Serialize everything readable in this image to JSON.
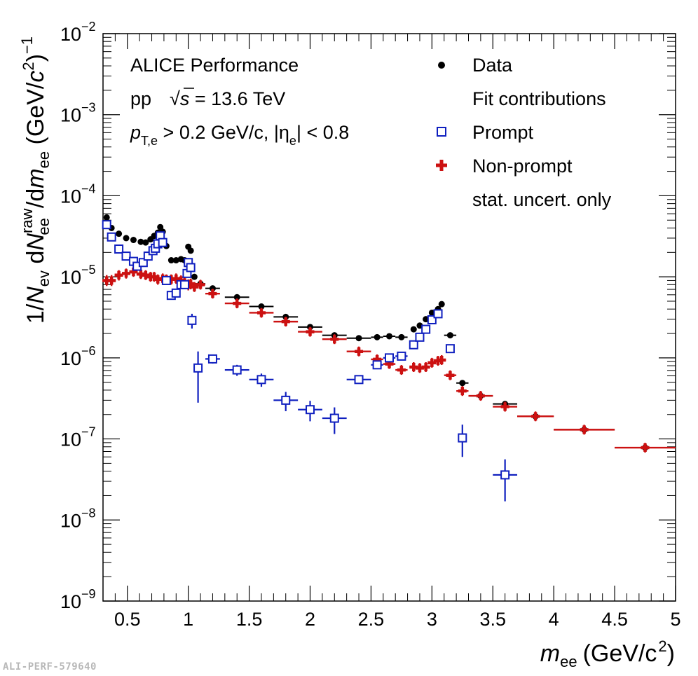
{
  "chart_data": {
    "type": "scatter",
    "title": "",
    "xlabel": {
      "main": "m",
      "sub": "ee",
      "unit": "(GeV/c",
      "exp": "2",
      "close": ")"
    },
    "ylabel": {
      "p1": "1/",
      "N": "N",
      "ev": "ev",
      "p2": " d",
      "N2": "N",
      "ee_sub": "ee",
      "raw_sup": "raw",
      "p3": "/d",
      "m": "m",
      "ee2": "ee",
      "p4": " (GeV/",
      "c": "c",
      "two": "2",
      "p5": ")",
      "minus1": "−1"
    },
    "xlim": [
      0.3,
      5.0
    ],
    "ylim_log10": [
      -9,
      -2
    ],
    "log_y": true,
    "x_ticks": [
      "0.5",
      "1",
      "1.5",
      "2",
      "2.5",
      "3",
      "3.5",
      "4",
      "4.5",
      "5"
    ],
    "x_tick_values": [
      0.5,
      1,
      1.5,
      2,
      2.5,
      3,
      3.5,
      4,
      4.5,
      5
    ],
    "y_ticks": [
      {
        "exp": -9,
        "base": "10",
        "sup": "−9"
      },
      {
        "exp": -8,
        "base": "10",
        "sup": "−8"
      },
      {
        "exp": -7,
        "base": "10",
        "sup": "−7"
      },
      {
        "exp": -6,
        "base": "10",
        "sup": "−6"
      },
      {
        "exp": -5,
        "base": "10",
        "sup": "−5"
      },
      {
        "exp": -4,
        "base": "10",
        "sup": "−4"
      },
      {
        "exp": -3,
        "base": "10",
        "sup": "−3"
      },
      {
        "exp": -2,
        "base": "10",
        "sup": "−2"
      }
    ],
    "annotations": {
      "experiment": "ALICE Performance",
      "system": "pp",
      "sqrt": "√",
      "s": "s",
      "energy": " = 13.6 TeV",
      "pt_p": "p",
      "pt_sub": "T,e",
      "pt_cut": " > 0.2 GeV/c, |η",
      "eta_sub": "e",
      "eta_cut": "| < 0.8"
    },
    "legend": {
      "position": "top-right",
      "entries": [
        {
          "label": "Data",
          "marker": "dot",
          "color": "#000000"
        },
        {
          "label": "Fit contributions",
          "marker": "none",
          "color": "#000000"
        },
        {
          "label": "Prompt",
          "marker": "open-square",
          "color": "#0f1fbf"
        },
        {
          "label": "Non-prompt",
          "marker": "cross",
          "color": "#cc1111"
        },
        {
          "label": "stat. uncert. only",
          "marker": "none",
          "color": "#000000"
        }
      ]
    },
    "series": [
      {
        "name": "Data",
        "marker": "dot",
        "color": "#000000",
        "points": [
          {
            "x": 0.33,
            "xw": 0.01,
            "y": 5.4e-05
          },
          {
            "x": 0.37,
            "xw": 0.01,
            "y": 4e-05
          },
          {
            "x": 0.43,
            "xw": 0.02,
            "y": 3.4e-05
          },
          {
            "x": 0.49,
            "xw": 0.02,
            "y": 3e-05
          },
          {
            "x": 0.55,
            "xw": 0.02,
            "y": 2.85e-05
          },
          {
            "x": 0.61,
            "xw": 0.02,
            "y": 2.7e-05
          },
          {
            "x": 0.65,
            "xw": 0.01,
            "y": 2.65e-05
          },
          {
            "x": 0.69,
            "xw": 0.01,
            "y": 2.9e-05
          },
          {
            "x": 0.72,
            "xw": 0.01,
            "y": 3.2e-05
          },
          {
            "x": 0.75,
            "xw": 0.01,
            "y": 3.5e-05
          },
          {
            "x": 0.77,
            "xw": 0.01,
            "y": 4.1e-05
          },
          {
            "x": 0.79,
            "xw": 0.01,
            "y": 3.6e-05
          },
          {
            "x": 0.82,
            "xw": 0.01,
            "y": 2.4e-05
          },
          {
            "x": 0.86,
            "xw": 0.01,
            "y": 1.6e-05
          },
          {
            "x": 0.9,
            "xw": 0.01,
            "y": 1.6e-05
          },
          {
            "x": 0.94,
            "xw": 0.01,
            "y": 1.65e-05
          },
          {
            "x": 0.97,
            "xw": 0.01,
            "y": 1.6e-05
          },
          {
            "x": 1.0,
            "xw": 0.01,
            "y": 2.35e-05
          },
          {
            "x": 1.02,
            "xw": 0.01,
            "y": 2.1e-05
          },
          {
            "x": 1.05,
            "xw": 0.01,
            "y": 1e-05
          },
          {
            "x": 1.1,
            "xw": 0.04,
            "y": 8.2e-06
          },
          {
            "x": 1.2,
            "xw": 0.06,
            "y": 7.2e-06
          },
          {
            "x": 1.4,
            "xw": 0.1,
            "y": 5.6e-06
          },
          {
            "x": 1.6,
            "xw": 0.1,
            "y": 4.3e-06
          },
          {
            "x": 1.8,
            "xw": 0.1,
            "y": 3.2e-06
          },
          {
            "x": 2.0,
            "xw": 0.1,
            "y": 2.4e-06
          },
          {
            "x": 2.2,
            "xw": 0.1,
            "y": 1.9e-06
          },
          {
            "x": 2.4,
            "xw": 0.1,
            "y": 1.75e-06
          },
          {
            "x": 2.55,
            "xw": 0.05,
            "y": 1.8e-06
          },
          {
            "x": 2.65,
            "xw": 0.05,
            "y": 1.85e-06
          },
          {
            "x": 2.75,
            "xw": 0.05,
            "y": 1.8e-06
          },
          {
            "x": 2.85,
            "xw": 0.025,
            "y": 2.25e-06
          },
          {
            "x": 2.9,
            "xw": 0.025,
            "y": 2.5e-06
          },
          {
            "x": 2.95,
            "xw": 0.025,
            "y": 3e-06
          },
          {
            "x": 3.0,
            "xw": 0.025,
            "y": 3.6e-06
          },
          {
            "x": 3.05,
            "xw": 0.025,
            "y": 4e-06
          },
          {
            "x": 3.08,
            "xw": 0.025,
            "y": 4.6e-06
          },
          {
            "x": 3.15,
            "xw": 0.05,
            "y": 1.9e-06
          },
          {
            "x": 3.25,
            "xw": 0.05,
            "y": 4.9e-07
          },
          {
            "x": 3.4,
            "xw": 0.1,
            "y": 3.4e-07
          },
          {
            "x": 3.6,
            "xw": 0.1,
            "y": 2.7e-07
          },
          {
            "x": 3.85,
            "xw": 0.15,
            "y": 1.9e-07
          },
          {
            "x": 4.25,
            "xw": 0.25,
            "y": 1.3e-07
          },
          {
            "x": 4.75,
            "xw": 0.25,
            "y": 7.8e-08
          }
        ]
      },
      {
        "name": "Non-prompt",
        "marker": "cross",
        "color": "#cc1111",
        "points": [
          {
            "x": 0.33,
            "xw": 0.01,
            "y": 9e-06,
            "ylo": 7.7e-06,
            "yhi": 1.05e-05
          },
          {
            "x": 0.37,
            "xw": 0.01,
            "y": 9e-06,
            "ylo": 7.7e-06,
            "yhi": 1.05e-05
          },
          {
            "x": 0.43,
            "xw": 0.02,
            "y": 1.05e-05,
            "ylo": 9e-06,
            "yhi": 1.2e-05
          },
          {
            "x": 0.49,
            "xw": 0.02,
            "y": 1.1e-05,
            "ylo": 9.5e-06,
            "yhi": 1.25e-05
          },
          {
            "x": 0.55,
            "xw": 0.02,
            "y": 1.15e-05,
            "ylo": 1e-05,
            "yhi": 1.3e-05
          },
          {
            "x": 0.61,
            "xw": 0.02,
            "y": 1.08e-05,
            "ylo": 9.5e-06,
            "yhi": 1.22e-05
          },
          {
            "x": 0.65,
            "xw": 0.01,
            "y": 1.05e-05,
            "ylo": 9.2e-06,
            "yhi": 1.2e-05
          },
          {
            "x": 0.69,
            "xw": 0.01,
            "y": 1e-05,
            "ylo": 8.8e-06,
            "yhi": 1.15e-05
          },
          {
            "x": 0.72,
            "xw": 0.01,
            "y": 1e-05,
            "ylo": 8.8e-06,
            "yhi": 1.15e-05
          },
          {
            "x": 0.75,
            "xw": 0.01,
            "y": 9.3e-06,
            "ylo": 8e-06,
            "yhi": 1.07e-05
          },
          {
            "x": 0.79,
            "xw": 0.01,
            "y": 9.5e-06,
            "ylo": 8.2e-06,
            "yhi": 1.1e-05
          },
          {
            "x": 0.82,
            "xw": 0.01,
            "y": 9.3e-06,
            "ylo": 8e-06,
            "yhi": 1.07e-05
          },
          {
            "x": 0.86,
            "xw": 0.01,
            "y": 9.3e-06,
            "ylo": 8e-06,
            "yhi": 1.07e-05
          },
          {
            "x": 0.9,
            "xw": 0.01,
            "y": 9.5e-06,
            "ylo": 8.2e-06,
            "yhi": 1.1e-05
          },
          {
            "x": 0.94,
            "xw": 0.01,
            "y": 9e-06,
            "ylo": 7.8e-06,
            "yhi": 1.04e-05
          },
          {
            "x": 0.97,
            "xw": 0.01,
            "y": 8.5e-06,
            "ylo": 7.3e-06,
            "yhi": 9.8e-06
          },
          {
            "x": 1.0,
            "xw": 0.01,
            "y": 8e-06,
            "ylo": 6.8e-06,
            "yhi": 9.3e-06
          },
          {
            "x": 1.02,
            "xw": 0.01,
            "y": 8.2e-06,
            "ylo": 7e-06,
            "yhi": 9.5e-06
          },
          {
            "x": 1.05,
            "xw": 0.01,
            "y": 7.5e-06,
            "ylo": 6.5e-06,
            "yhi": 8.6e-06
          },
          {
            "x": 1.1,
            "xw": 0.04,
            "y": 8e-06,
            "ylo": 7.3e-06,
            "yhi": 8.8e-06
          },
          {
            "x": 1.2,
            "xw": 0.06,
            "y": 6.2e-06,
            "ylo": 5.8e-06,
            "yhi": 6.6e-06
          },
          {
            "x": 1.4,
            "xw": 0.1,
            "y": 4.7e-06,
            "ylo": 4.2e-06,
            "yhi": 5.2e-06
          },
          {
            "x": 1.6,
            "xw": 0.1,
            "y": 3.6e-06,
            "ylo": 3.2e-06,
            "yhi": 4e-06
          },
          {
            "x": 1.8,
            "xw": 0.1,
            "y": 2.8e-06,
            "ylo": 2.5e-06,
            "yhi": 3.1e-06
          },
          {
            "x": 2.0,
            "xw": 0.1,
            "y": 2.1e-06,
            "ylo": 1.9e-06,
            "yhi": 2.35e-06
          },
          {
            "x": 2.2,
            "xw": 0.1,
            "y": 1.7e-06,
            "ylo": 1.5e-06,
            "yhi": 1.9e-06
          },
          {
            "x": 2.4,
            "xw": 0.1,
            "y": 1.2e-06,
            "ylo": 1.05e-06,
            "yhi": 1.35e-06
          },
          {
            "x": 2.55,
            "xw": 0.05,
            "y": 9.6e-07,
            "ylo": 8.6e-07,
            "yhi": 1.08e-06
          },
          {
            "x": 2.65,
            "xw": 0.05,
            "y": 8.4e-07,
            "ylo": 7.5e-07,
            "yhi": 9.4e-07
          },
          {
            "x": 2.75,
            "xw": 0.05,
            "y": 7.1e-07,
            "ylo": 6.3e-07,
            "yhi": 8e-07
          },
          {
            "x": 2.85,
            "xw": 0.025,
            "y": 7.7e-07,
            "ylo": 6.9e-07,
            "yhi": 8.6e-07
          },
          {
            "x": 2.9,
            "xw": 0.025,
            "y": 7.5e-07,
            "ylo": 6.7e-07,
            "yhi": 8.4e-07
          },
          {
            "x": 2.95,
            "xw": 0.025,
            "y": 7.7e-07,
            "ylo": 6.9e-07,
            "yhi": 8.6e-07
          },
          {
            "x": 3.0,
            "xw": 0.025,
            "y": 8.7e-07,
            "ylo": 7.8e-07,
            "yhi": 9.7e-07
          },
          {
            "x": 3.05,
            "xw": 0.025,
            "y": 9.2e-07,
            "ylo": 8.2e-07,
            "yhi": 1.03e-06
          },
          {
            "x": 3.08,
            "xw": 0.025,
            "y": 9.4e-07,
            "ylo": 8.4e-07,
            "yhi": 1.05e-06
          },
          {
            "x": 3.15,
            "xw": 0.05,
            "y": 6.1e-07,
            "ylo": 5.4e-07,
            "yhi": 6.9e-07
          },
          {
            "x": 3.25,
            "xw": 0.05,
            "y": 3.9e-07,
            "ylo": 3.5e-07,
            "yhi": 4.4e-07
          },
          {
            "x": 3.4,
            "xw": 0.1,
            "y": 3.4e-07,
            "ylo": 3.1e-07,
            "yhi": 3.75e-07
          },
          {
            "x": 3.6,
            "xw": 0.1,
            "y": 2.5e-07,
            "ylo": 2.25e-07,
            "yhi": 2.8e-07
          },
          {
            "x": 3.85,
            "xw": 0.15,
            "y": 1.9e-07,
            "ylo": 1.75e-07,
            "yhi": 2.05e-07
          },
          {
            "x": 4.25,
            "xw": 0.25,
            "y": 1.3e-07,
            "ylo": 1.2e-07,
            "yhi": 1.42e-07
          },
          {
            "x": 4.75,
            "xw": 0.25,
            "y": 7.8e-08,
            "ylo": 7.1e-08,
            "yhi": 8.6e-08
          }
        ]
      },
      {
        "name": "Prompt",
        "marker": "open-square",
        "color": "#0f1fbf",
        "points": [
          {
            "x": 0.33,
            "xw": 0.01,
            "y": 4.4e-05,
            "ylo": 4.1e-05,
            "yhi": 4.7e-05
          },
          {
            "x": 0.37,
            "xw": 0.01,
            "y": 3.1e-05,
            "ylo": 2.9e-05,
            "yhi": 3.3e-05
          },
          {
            "x": 0.43,
            "xw": 0.02,
            "y": 2.2e-05,
            "ylo": 2.05e-05,
            "yhi": 2.35e-05
          },
          {
            "x": 0.49,
            "xw": 0.02,
            "y": 1.8e-05,
            "ylo": 1.65e-05,
            "yhi": 1.95e-05
          },
          {
            "x": 0.55,
            "xw": 0.02,
            "y": 1.55e-05,
            "ylo": 1.42e-05,
            "yhi": 1.68e-05
          },
          {
            "x": 0.58,
            "xw": 0.01,
            "y": 1.35e-05,
            "ylo": 1.24e-05,
            "yhi": 1.46e-05
          },
          {
            "x": 0.63,
            "xw": 0.01,
            "y": 1.5e-05,
            "ylo": 1.38e-05,
            "yhi": 1.62e-05
          },
          {
            "x": 0.67,
            "xw": 0.01,
            "y": 1.8e-05,
            "ylo": 1.65e-05,
            "yhi": 1.95e-05
          },
          {
            "x": 0.71,
            "xw": 0.01,
            "y": 2.1e-05,
            "ylo": 1.93e-05,
            "yhi": 2.27e-05
          },
          {
            "x": 0.73,
            "xw": 0.01,
            "y": 2.25e-05,
            "ylo": 2.07e-05,
            "yhi": 2.43e-05
          },
          {
            "x": 0.75,
            "xw": 0.01,
            "y": 2.55e-05,
            "ylo": 2.35e-05,
            "yhi": 2.75e-05
          },
          {
            "x": 0.77,
            "xw": 0.01,
            "y": 3.2e-05,
            "ylo": 2.95e-05,
            "yhi": 3.45e-05
          },
          {
            "x": 0.79,
            "xw": 0.01,
            "y": 2.65e-05,
            "ylo": 2.45e-05,
            "yhi": 2.85e-05
          },
          {
            "x": 0.82,
            "xw": 0.01,
            "y": 9e-06,
            "ylo": 8.2e-06,
            "yhi": 9.8e-06
          },
          {
            "x": 0.86,
            "xw": 0.01,
            "y": 5.9e-06,
            "ylo": 5.3e-06,
            "yhi": 6.5e-06
          },
          {
            "x": 0.9,
            "xw": 0.01,
            "y": 6.3e-06,
            "ylo": 5.7e-06,
            "yhi": 6.9e-06
          },
          {
            "x": 0.94,
            "xw": 0.01,
            "y": 8e-06,
            "ylo": 7.3e-06,
            "yhi": 8.7e-06
          },
          {
            "x": 0.97,
            "xw": 0.01,
            "y": 8e-06,
            "ylo": 7.3e-06,
            "yhi": 8.7e-06
          },
          {
            "x": 0.99,
            "xw": 0.01,
            "y": 1.1e-05,
            "ylo": 1e-05,
            "yhi": 1.2e-05
          },
          {
            "x": 1.0,
            "xw": 0.01,
            "y": 1.5e-05,
            "ylo": 1.38e-05,
            "yhi": 1.62e-05
          },
          {
            "x": 1.02,
            "xw": 0.01,
            "y": 1.3e-05,
            "ylo": 1.19e-05,
            "yhi": 1.41e-05
          },
          {
            "x": 1.03,
            "xw": 0.01,
            "y": 2.9e-06,
            "ylo": 2.3e-06,
            "yhi": 3.5e-06
          },
          {
            "x": 1.08,
            "xw": 0.02,
            "y": 7.5e-07,
            "ylo": 2.8e-07,
            "yhi": 1.2e-06
          },
          {
            "x": 1.2,
            "xw": 0.06,
            "y": 9.7e-07,
            "ylo": 8.5e-07,
            "yhi": 1.1e-06
          },
          {
            "x": 1.4,
            "xw": 0.1,
            "y": 7.1e-07,
            "ylo": 6e-07,
            "yhi": 8.2e-07
          },
          {
            "x": 1.6,
            "xw": 0.1,
            "y": 5.4e-07,
            "ylo": 4.4e-07,
            "yhi": 6.4e-07
          },
          {
            "x": 1.8,
            "xw": 0.1,
            "y": 3e-07,
            "ylo": 2.2e-07,
            "yhi": 3.8e-07
          },
          {
            "x": 2.0,
            "xw": 0.1,
            "y": 2.3e-07,
            "ylo": 1.65e-07,
            "yhi": 2.95e-07
          },
          {
            "x": 2.2,
            "xw": 0.1,
            "y": 1.8e-07,
            "ylo": 1.15e-07,
            "yhi": 2.45e-07
          },
          {
            "x": 2.4,
            "xw": 0.1,
            "y": 5.4e-07,
            "ylo": 5e-07,
            "yhi": 5.8e-07
          },
          {
            "x": 2.55,
            "xw": 0.05,
            "y": 8.2e-07,
            "ylo": 7.6e-07,
            "yhi": 8.8e-07
          },
          {
            "x": 2.65,
            "xw": 0.05,
            "y": 1e-06,
            "ylo": 9.3e-07,
            "yhi": 1.07e-06
          },
          {
            "x": 2.75,
            "xw": 0.05,
            "y": 1.05e-06,
            "ylo": 9.8e-07,
            "yhi": 1.12e-06
          },
          {
            "x": 2.85,
            "xw": 0.025,
            "y": 1.45e-06,
            "ylo": 1.35e-06,
            "yhi": 1.55e-06
          },
          {
            "x": 2.9,
            "xw": 0.025,
            "y": 1.8e-06,
            "ylo": 1.68e-06,
            "yhi": 1.92e-06
          },
          {
            "x": 2.95,
            "xw": 0.025,
            "y": 2.25e-06,
            "ylo": 2.1e-06,
            "yhi": 2.4e-06
          },
          {
            "x": 3.0,
            "xw": 0.025,
            "y": 2.95e-06,
            "ylo": 2.75e-06,
            "yhi": 3.15e-06
          },
          {
            "x": 3.05,
            "xw": 0.025,
            "y": 3.5e-06,
            "ylo": 3.27e-06,
            "yhi": 3.73e-06
          },
          {
            "x": 3.15,
            "xw": 0.02,
            "y": 1.3e-06,
            "ylo": 1.2e-06,
            "yhi": 1.4e-06
          },
          {
            "x": 3.25,
            "xw": 0.025,
            "y": 1.03e-07,
            "ylo": 6e-08,
            "yhi": 1.5e-07
          },
          {
            "x": 3.6,
            "xw": 0.1,
            "y": 3.6e-08,
            "ylo": 1.7e-08,
            "yhi": 5.6e-08
          }
        ]
      }
    ]
  },
  "watermark": "ALI-PERF-579640"
}
